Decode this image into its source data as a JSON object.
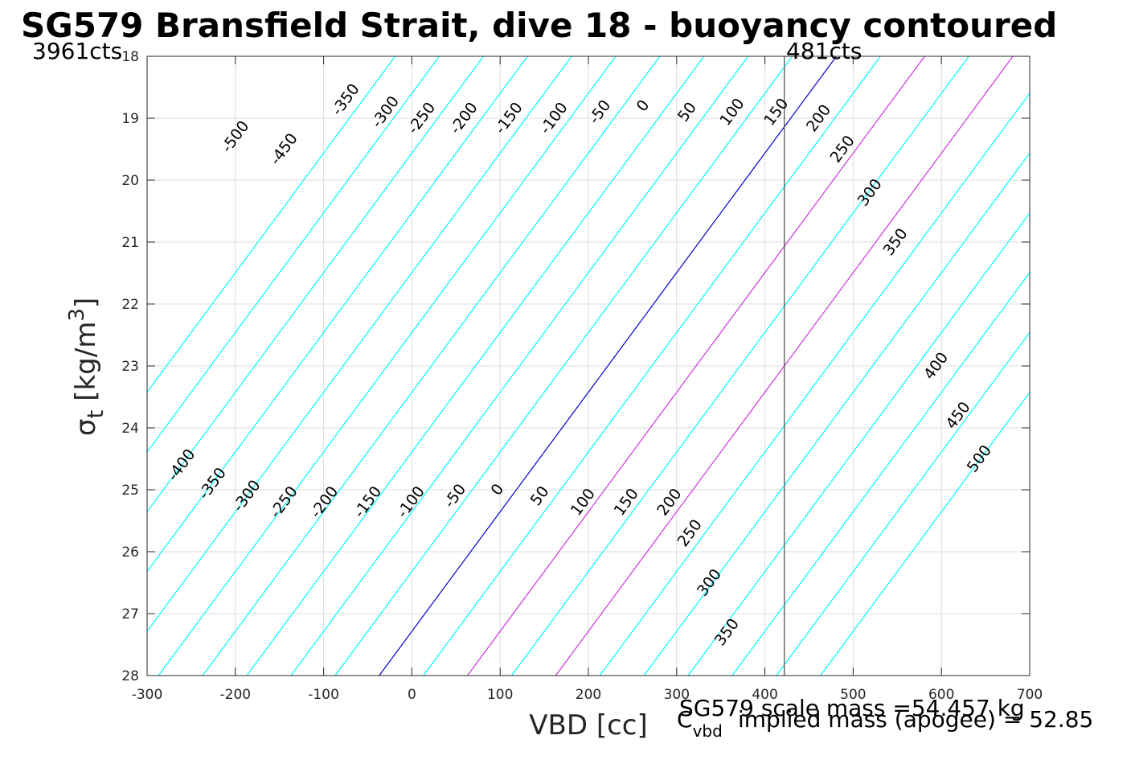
{
  "chart_data": {
    "type": "line",
    "title": "SG579 Bransfield Strait, dive 18 - buoyancy contoured",
    "xlabel": "VBD [cc]",
    "ylabel_main": "σ",
    "ylabel_sub": "t",
    "ylabel_unit_pre": " [kg/m",
    "ylabel_unit_sup": "3",
    "ylabel_unit_post": "]",
    "xlim": [
      -300,
      700
    ],
    "ylim": [
      18,
      28
    ],
    "y_reversed": true,
    "grid": true,
    "x_ticks": [
      -300,
      -200,
      -100,
      0,
      100,
      200,
      300,
      400,
      500,
      600,
      700
    ],
    "x_tick_labels": [
      "-300",
      "-200",
      "-100",
      "0",
      "100",
      "200",
      "300",
      "400",
      "500",
      "600",
      "700"
    ],
    "y_ticks": [
      18,
      19,
      20,
      21,
      22,
      23,
      24,
      25,
      26,
      27,
      28
    ],
    "y_tick_labels": [
      "18",
      "19",
      "20",
      "21",
      "22",
      "23",
      "24",
      "25",
      "26",
      "27",
      "28"
    ],
    "contour_model": {
      "description_free": true,
      "vbd_at_zero_buoyancy_sigma28": -37,
      "vbd_at_zero_buoyancy_sigma18": 481,
      "level_spacing_vbd": 50
    },
    "contour_levels": [
      -500,
      -450,
      -400,
      -350,
      -300,
      -250,
      -200,
      -150,
      -100,
      -50,
      0,
      50,
      100,
      150,
      200,
      250,
      300,
      350,
      400,
      450,
      500
    ],
    "contour_colors": {
      "default": "#00ffff",
      "zero": "#0000cc",
      "highlight": "#cc33dd"
    },
    "highlight_levels": [
      100,
      200
    ],
    "vertical_line": {
      "x": 422,
      "color": "#555555"
    },
    "annotations": {
      "left_top": "3961cts",
      "vline_top": "481cts"
    },
    "contour_labels": [
      {
        "text": "-500",
        "x": -200,
        "y": 19.3
      },
      {
        "text": "-450",
        "x": -145,
        "y": 19.5
      },
      {
        "text": "-350",
        "x": -75,
        "y": 18.7
      },
      {
        "text": "-300",
        "x": -30,
        "y": 18.9
      },
      {
        "text": "-250",
        "x": 11,
        "y": 19.0
      },
      {
        "text": "-200",
        "x": 59,
        "y": 19.0
      },
      {
        "text": "-150",
        "x": 110,
        "y": 19.0
      },
      {
        "text": "-100",
        "x": 161,
        "y": 19.0
      },
      {
        "text": "-50",
        "x": 213,
        "y": 18.9
      },
      {
        "text": "0",
        "x": 262,
        "y": 18.8
      },
      {
        "text": "50",
        "x": 312,
        "y": 18.9
      },
      {
        "text": "100",
        "x": 363,
        "y": 18.9
      },
      {
        "text": "150",
        "x": 413,
        "y": 18.9
      },
      {
        "text": "200",
        "x": 461,
        "y": 19.0
      },
      {
        "text": "250",
        "x": 488,
        "y": 19.5
      },
      {
        "text": "300",
        "x": 519,
        "y": 20.2
      },
      {
        "text": "350",
        "x": 548,
        "y": 21.0
      },
      {
        "text": "400",
        "x": 594,
        "y": 23.0
      },
      {
        "text": "450",
        "x": 619,
        "y": 23.8
      },
      {
        "text": "500",
        "x": 643,
        "y": 24.5
      },
      {
        "text": "-400",
        "x": -261,
        "y": 24.6
      },
      {
        "text": "-350",
        "x": -226,
        "y": 24.9
      },
      {
        "text": "-300",
        "x": -187,
        "y": 25.1
      },
      {
        "text": "-250",
        "x": -145,
        "y": 25.2
      },
      {
        "text": "-200",
        "x": -99,
        "y": 25.2
      },
      {
        "text": "-150",
        "x": -50,
        "y": 25.2
      },
      {
        "text": "-100",
        "x": -1,
        "y": 25.2
      },
      {
        "text": "-50",
        "x": 49,
        "y": 25.1
      },
      {
        "text": "0",
        "x": 97,
        "y": 25.0
      },
      {
        "text": "50",
        "x": 145,
        "y": 25.1
      },
      {
        "text": "100",
        "x": 194,
        "y": 25.2
      },
      {
        "text": "150",
        "x": 243,
        "y": 25.2
      },
      {
        "text": "200",
        "x": 292,
        "y": 25.2
      },
      {
        "text": "250",
        "x": 315,
        "y": 25.7
      },
      {
        "text": "300",
        "x": 337,
        "y": 26.5
      },
      {
        "text": "350",
        "x": 357,
        "y": 27.3
      }
    ],
    "footer_lines": [
      "SG579 scale mass =54.457 kg",
      "C",
      "vbd",
      " implied mass (apogee) = 52.85"
    ]
  }
}
